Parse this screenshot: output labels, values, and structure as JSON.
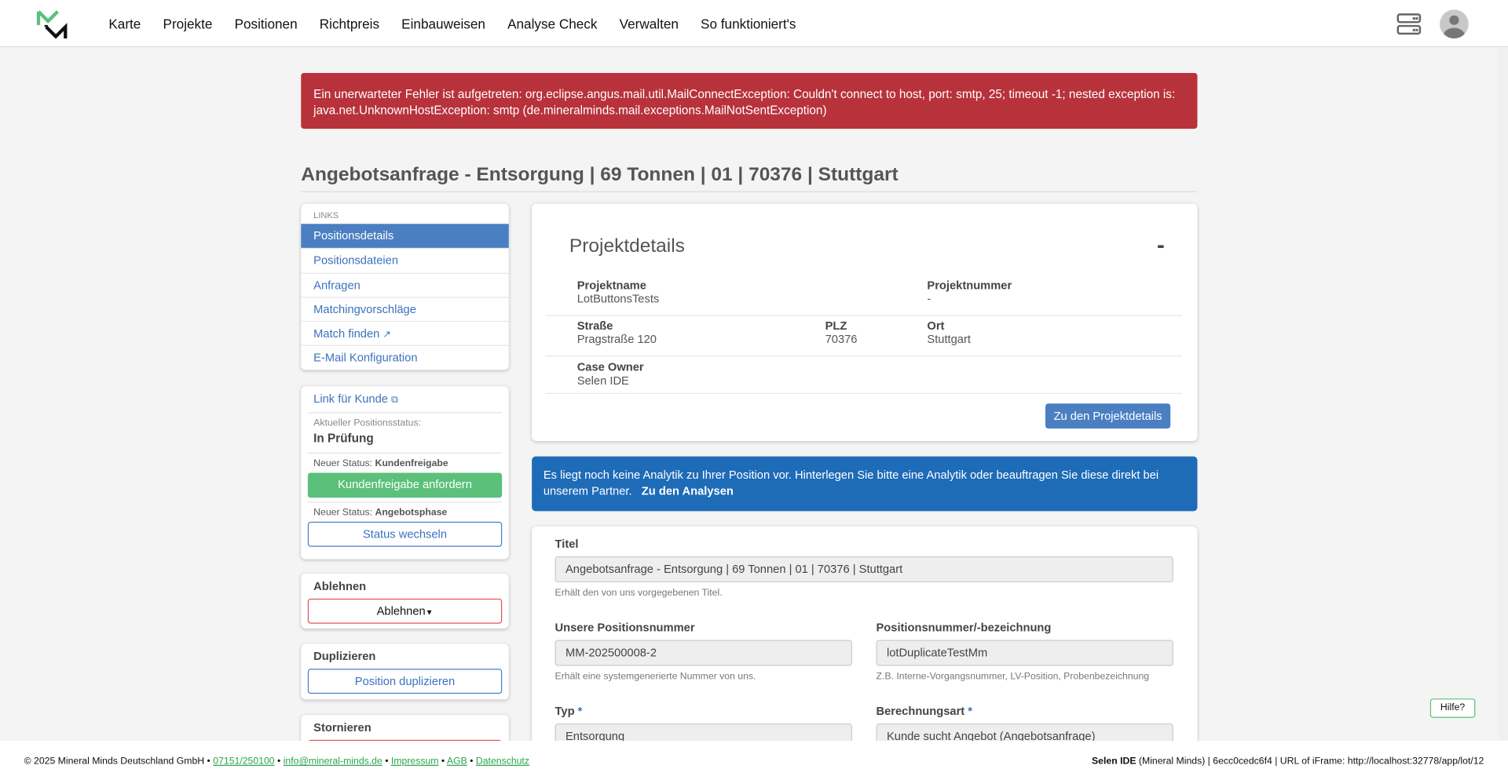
{
  "nav": {
    "items": [
      "Karte",
      "Projekte",
      "Positionen",
      "Richtpreis",
      "Einbauweisen",
      "Analyse Check",
      "Verwalten",
      "So funktioniert's"
    ]
  },
  "alert": {
    "text": "Ein unerwarteter Fehler ist aufgetreten: org.eclipse.angus.mail.util.MailConnectException: Couldn't connect to host, port: smtp, 25; timeout -1; nested exception is: java.net.UnknownHostException: smtp (de.mineralminds.mail.exceptions.MailNotSentException)",
    "color": "#b8323b"
  },
  "page_title": "Angebotsanfrage - Entsorgung | 69 Tonnen | 01 | 70376 | Stuttgart",
  "links": {
    "header": "LINKS",
    "items": [
      "Positionsdetails",
      "Positionsdateien",
      "Anfragen",
      "Matchingvorschläge",
      "Match finden",
      "E-Mail Konfiguration"
    ],
    "active": "Positionsdetails"
  },
  "status": {
    "link_label": "Link für Kunde",
    "current_label": "Aktueller Positionsstatus:",
    "current_value": "In Prüfung",
    "new_status_prefix": "Neuer Status:",
    "new1": "Kundenfreigabe",
    "btn1": "Kundenfreigabe anfordern",
    "new2": "Angebotsphase",
    "btn2": "Status wechseln"
  },
  "reject": {
    "title": "Ablehnen",
    "button": "Ablehnen"
  },
  "duplicate": {
    "title": "Duplizieren",
    "button": "Position duplizieren"
  },
  "cancel": {
    "title": "Stornieren"
  },
  "project": {
    "title": "Projektdetails",
    "collapse": "-",
    "fields": {
      "name_l": "Projektname",
      "name_v": "LotButtonsTests",
      "num_l": "Projektnummer",
      "num_v": "-",
      "street_l": "Straße",
      "street_v": "Pragstraße 120",
      "plz_l": "PLZ",
      "plz_v": "70376",
      "ort_l": "Ort",
      "ort_v": "Stuttgart",
      "owner_l": "Case Owner",
      "owner_v": "Selen IDE"
    },
    "button": "Zu den Projektdetails"
  },
  "info": {
    "text": "Es liegt noch keine Analytik zu Ihrer Position vor. Hinterlegen Sie bitte eine Analytik oder beauftragen Sie diese direkt bei unserem Partner.",
    "link": "Zu den Analysen"
  },
  "form": {
    "title_l": "Titel",
    "title_v": "Angebotsanfrage - Entsorgung | 69 Tonnen | 01 | 70376 | Stuttgart",
    "title_h": "Erhält den von uns vorgegebenen Titel.",
    "ourpos_l": "Unsere Positionsnummer",
    "ourpos_v": "MM-202500008-2",
    "ourpos_h": "Erhält eine systemgenerierte Nummer von uns.",
    "pos_l": "Positionsnummer/-bezeichnung",
    "pos_v": "lotDuplicateTestMm",
    "pos_h": "Z.B. Interne-Vorgangsnummer, LV-Position, Probenbezeichnung",
    "typ_l": "Typ",
    "typ_v": "Entsorgung",
    "calc_l": "Berechnungsart",
    "calc_v": "Kunde sucht Angebot (Angebotsanfrage)",
    "required": "*"
  },
  "help": "Hilfe?",
  "footer": {
    "copyright": "© 2025 Mineral Minds Deutschland GmbH",
    "phone": "07151/250100",
    "email": "info@mineral-minds.de",
    "impressum": "Impressum",
    "agb": "AGB",
    "datenschutz": "Datenschutz",
    "sep": "•",
    "user": "Selen IDE",
    "right": "(Mineral Minds) | 6ecc0cedc6f4 | URL of iFrame: http://localhost:32778/app/lot/12"
  },
  "colors": {
    "primary": "#4a7fc1",
    "success": "#5bc07a",
    "danger": "#b8323b",
    "info": "#1e6bb8"
  }
}
